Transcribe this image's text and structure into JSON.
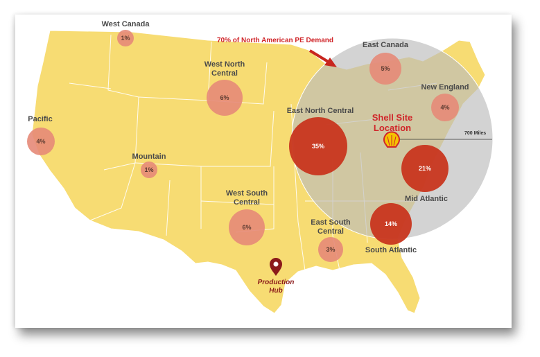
{
  "title": "70% of North American PE Demand",
  "shell_site": "Shell Site Location",
  "radius_label": "700 Miles",
  "production_hub": "Production Hub",
  "colors": {
    "land": "#f7dc73",
    "circle_light": "#e58a78",
    "circle_dark": "#c8361f",
    "accent": "#d0262a",
    "radius_zone": "#c9c9c9"
  },
  "regions": [
    {
      "name": "West Canada",
      "share": "1%"
    },
    {
      "name": "West North Central",
      "share": "6%"
    },
    {
      "name": "East Canada",
      "share": "5%"
    },
    {
      "name": "New England",
      "share": "4%"
    },
    {
      "name": "Pacific",
      "share": "4%"
    },
    {
      "name": "East North Central",
      "share": "35%"
    },
    {
      "name": "Mountain",
      "share": "1%"
    },
    {
      "name": "Mid Atlantic",
      "share": "21%"
    },
    {
      "name": "West South Central",
      "share": "6%"
    },
    {
      "name": "East South Central",
      "share": "3%"
    },
    {
      "name": "South Atlantic",
      "share": "14%"
    }
  ]
}
